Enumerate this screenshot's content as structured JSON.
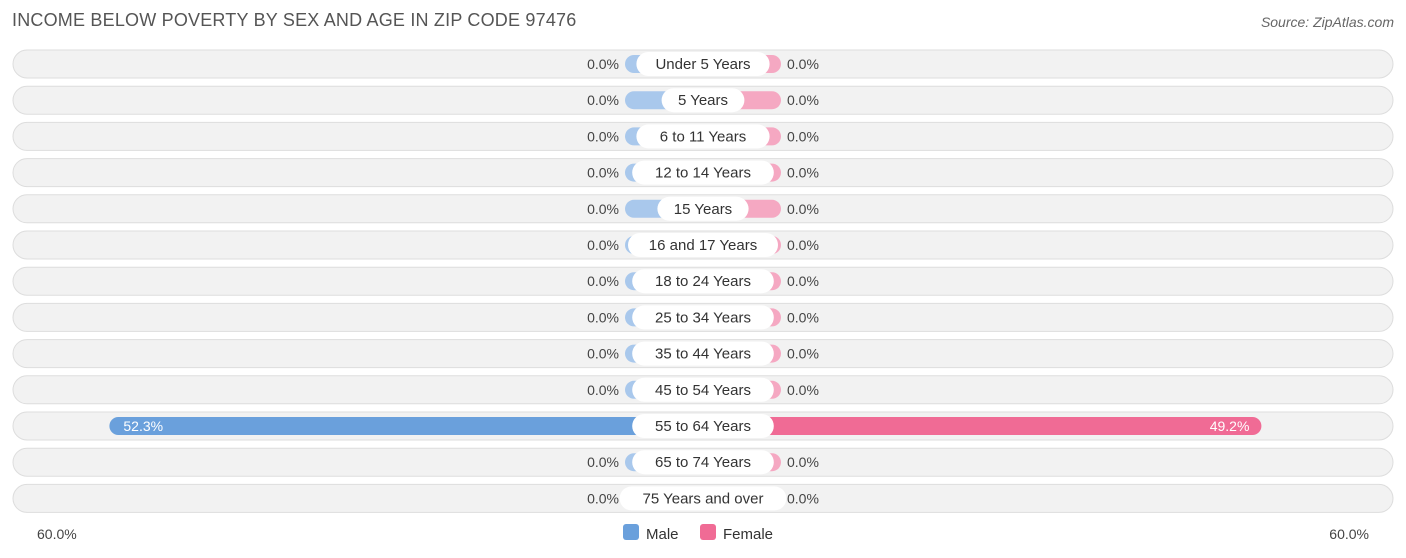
{
  "title": "INCOME BELOW POVERTY BY SEX AND AGE IN ZIP CODE 97476",
  "source": "Source: ZipAtlas.com",
  "colors": {
    "male": "#6aa0dc",
    "male_light": "#a9c8ec",
    "female": "#f06b95",
    "female_light": "#f5a8c2",
    "row_bg": "#f2f2f2",
    "row_border": "#dddddd"
  },
  "chart_data": {
    "type": "bar",
    "orientation": "horizontal-diverging",
    "categories": [
      "Under 5 Years",
      "5 Years",
      "6 to 11 Years",
      "12 to 14 Years",
      "15 Years",
      "16 and 17 Years",
      "18 to 24 Years",
      "25 to 34 Years",
      "35 to 44 Years",
      "45 to 54 Years",
      "55 to 64 Years",
      "65 to 74 Years",
      "75 Years and over"
    ],
    "series": [
      {
        "name": "Male",
        "values": [
          0.0,
          0.0,
          0.0,
          0.0,
          0.0,
          0.0,
          0.0,
          0.0,
          0.0,
          0.0,
          52.3,
          0.0,
          0.0
        ],
        "labels": [
          "0.0%",
          "0.0%",
          "0.0%",
          "0.0%",
          "0.0%",
          "0.0%",
          "0.0%",
          "0.0%",
          "0.0%",
          "0.0%",
          "52.3%",
          "0.0%",
          "0.0%"
        ]
      },
      {
        "name": "Female",
        "values": [
          0.0,
          0.0,
          0.0,
          0.0,
          0.0,
          0.0,
          0.0,
          0.0,
          0.0,
          0.0,
          49.2,
          0.0,
          0.0
        ],
        "labels": [
          "0.0%",
          "0.0%",
          "0.0%",
          "0.0%",
          "0.0%",
          "0.0%",
          "0.0%",
          "0.0%",
          "0.0%",
          "0.0%",
          "49.2%",
          "0.0%",
          "0.0%"
        ]
      }
    ],
    "xlim": [
      -60,
      60
    ],
    "axis_left_label": "60.0%",
    "axis_right_label": "60.0%",
    "legend": [
      "Male",
      "Female"
    ],
    "legend_position": "bottom-center",
    "grid": false
  }
}
